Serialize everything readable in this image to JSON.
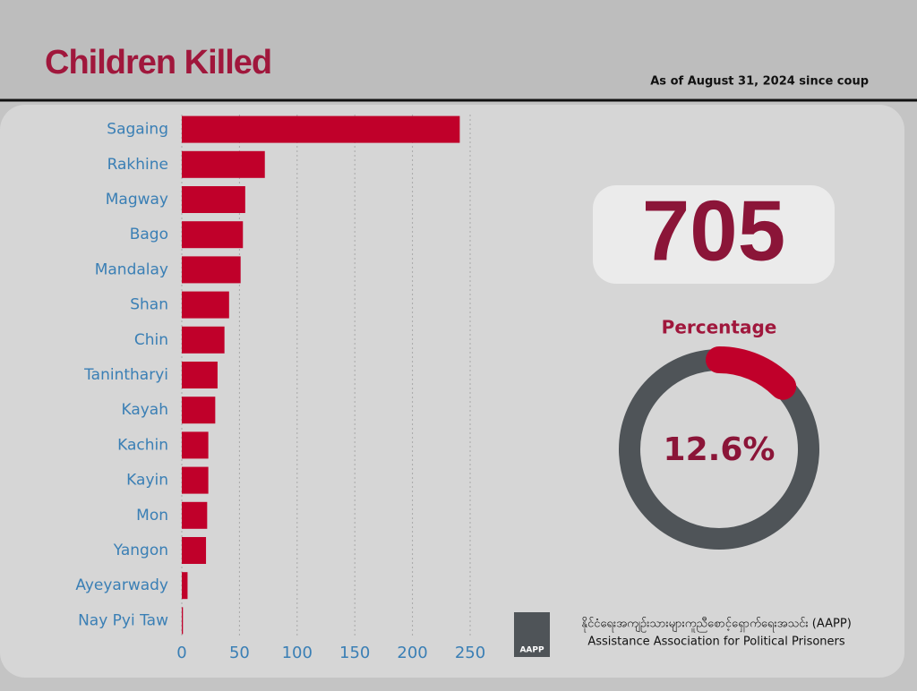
{
  "header": {
    "title": "Children Killed",
    "date": "As of August 31, 2024 since coup"
  },
  "total": 705,
  "chart_data": [
    {
      "type": "bar",
      "orientation": "horizontal",
      "categories": [
        "Sagaing",
        "Rakhine",
        "Magway",
        "Bago",
        "Mandalay",
        "Shan",
        "Chin",
        "Tanintharyi",
        "Kayah",
        "Kachin",
        "Kayin",
        "Mon",
        "Yangon",
        "Ayeyarwady",
        "Nay Pyi Taw"
      ],
      "values": [
        241,
        72,
        55,
        53,
        51,
        41,
        37,
        31,
        29,
        23,
        23,
        22,
        21,
        5,
        1
      ],
      "color": "#c0002a",
      "xlim": [
        0,
        250
      ],
      "xticks": [
        0,
        50,
        100,
        150,
        200,
        250
      ],
      "grid": true
    },
    {
      "type": "donut",
      "title": "Percentage",
      "values": [
        12.6
      ],
      "value_labels": [
        "12.6%"
      ],
      "ylim": [
        0,
        100
      ],
      "color": "#c0002a",
      "track_color": "#4f5458"
    }
  ],
  "footer": {
    "logo": "AAPP",
    "name_my": "နိုင်ငံရေးအကျဉ်းသားများကူညီစောင့်ရှောက်ရေးအသင်း (AAPP)",
    "name_en": "Assistance Association for Political Prisoners"
  }
}
